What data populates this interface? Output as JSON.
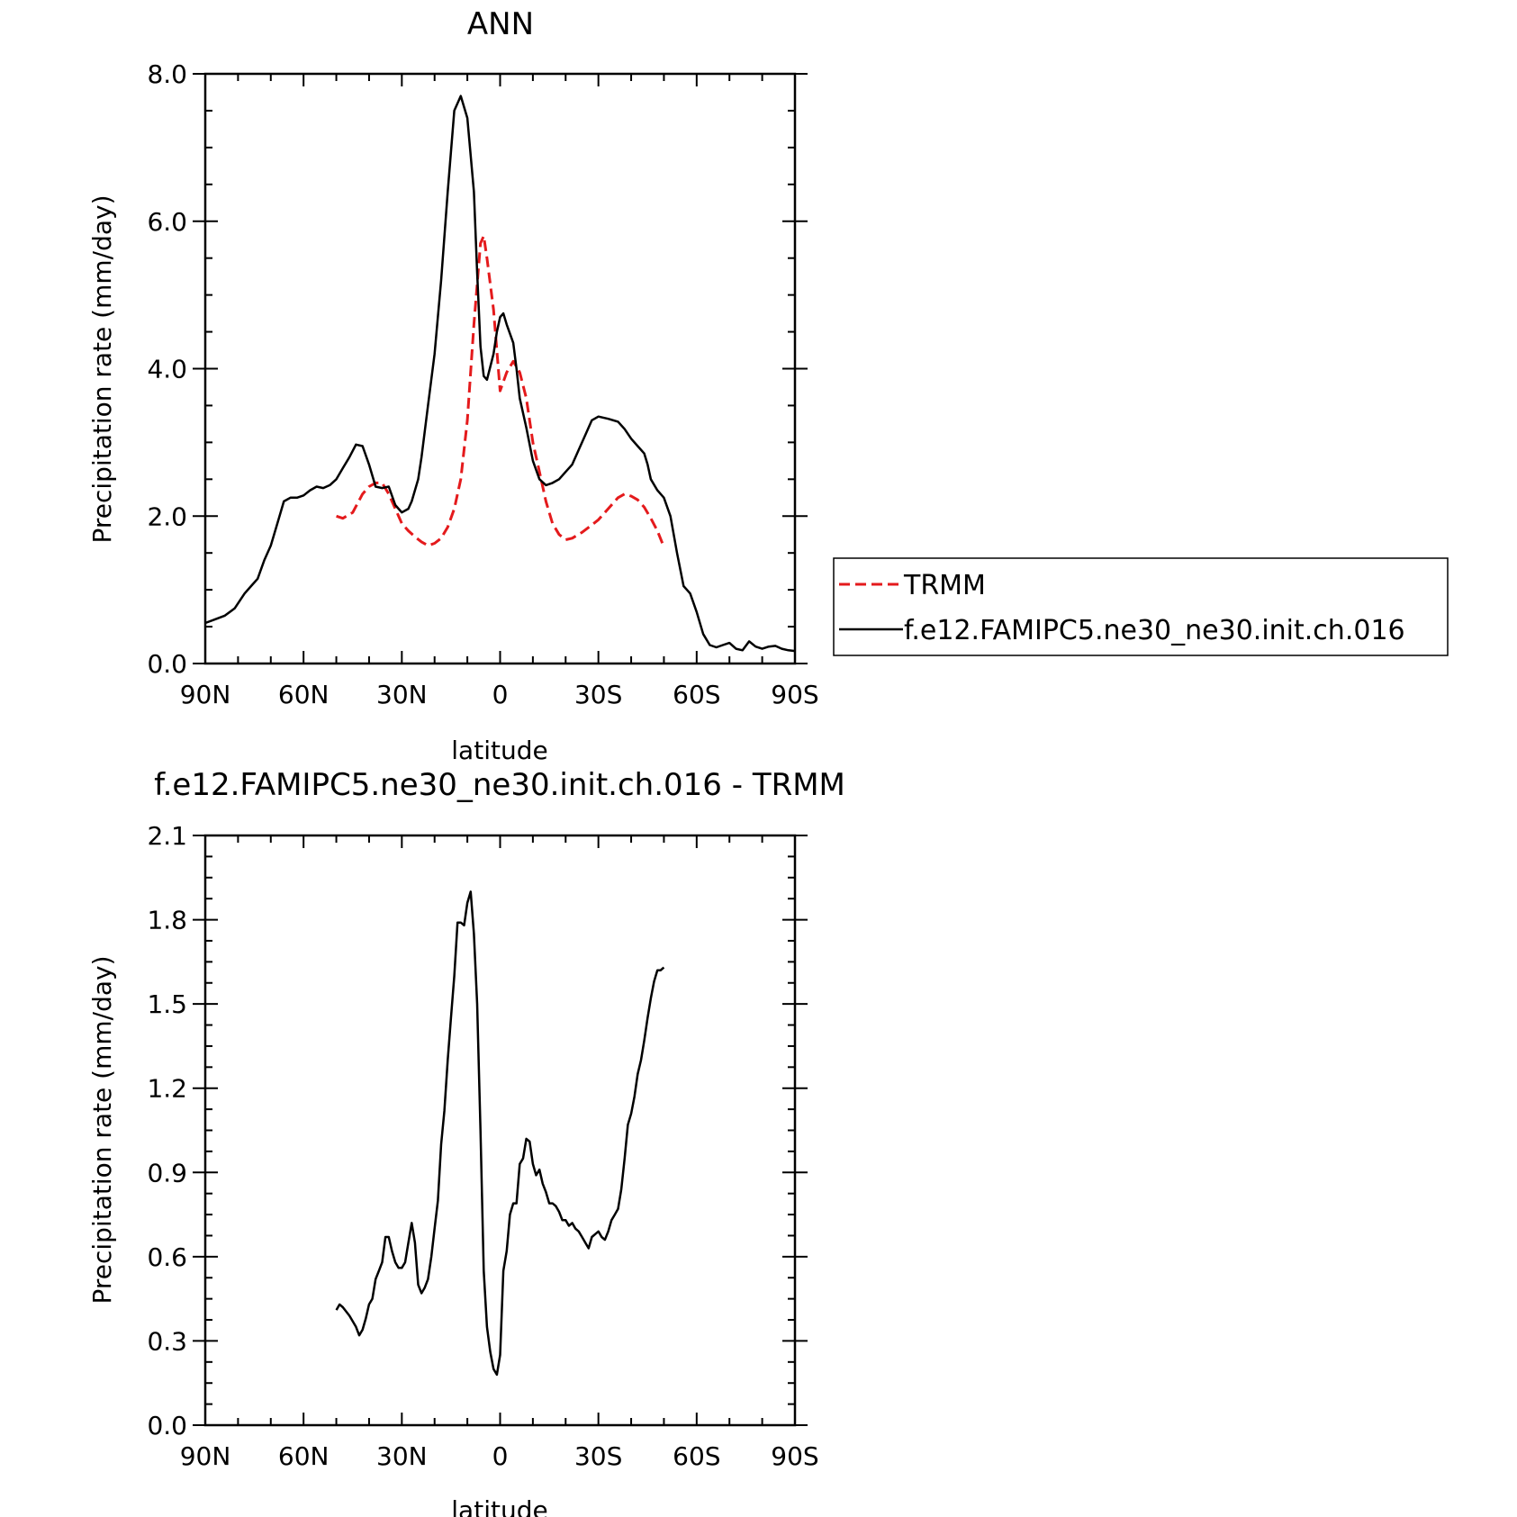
{
  "chart_data": [
    {
      "type": "line",
      "title": "ANN",
      "xlabel": "latitude",
      "ylabel": "Precipitation rate (mm/day)",
      "xlim": [
        90,
        -90
      ],
      "ylim": [
        0,
        8
      ],
      "xticks": [
        90,
        60,
        30,
        0,
        -30,
        -60,
        -90
      ],
      "xtick_labels": [
        "90N",
        "60N",
        "30N",
        "0",
        "30S",
        "60S",
        "90S"
      ],
      "yticks": [
        0,
        2,
        4,
        6,
        8
      ],
      "ytick_labels": [
        "0.0",
        "2.0",
        "4.0",
        "6.0",
        "8.0"
      ],
      "legend_position": "right",
      "series": [
        {
          "name": "TRMM",
          "color": "#e41a1c",
          "dash": true,
          "x": [
            50,
            48,
            45,
            42,
            40,
            38,
            36,
            34,
            32,
            30,
            28,
            26,
            24,
            22,
            20,
            18,
            16,
            14,
            12,
            10,
            8,
            6,
            5,
            4,
            2,
            0,
            -2,
            -4,
            -6,
            -8,
            -10,
            -12,
            -14,
            -16,
            -18,
            -20,
            -22,
            -25,
            -28,
            -30,
            -32,
            -34,
            -36,
            -38,
            -40,
            -42,
            -44,
            -46,
            -48,
            -50
          ],
          "y": [
            2.0,
            1.97,
            2.05,
            2.3,
            2.4,
            2.45,
            2.45,
            2.3,
            2.1,
            1.9,
            1.8,
            1.72,
            1.65,
            1.6,
            1.63,
            1.7,
            1.85,
            2.1,
            2.5,
            3.3,
            4.6,
            5.7,
            5.8,
            5.5,
            4.8,
            3.7,
            3.95,
            4.1,
            3.95,
            3.6,
            3.0,
            2.6,
            2.2,
            1.9,
            1.75,
            1.68,
            1.7,
            1.78,
            1.88,
            1.95,
            2.05,
            2.15,
            2.25,
            2.3,
            2.27,
            2.22,
            2.12,
            1.97,
            1.8,
            1.58
          ]
        },
        {
          "name": "f.e12.FAMIPC5.ne30_ne30.init.ch.016",
          "color": "#000000",
          "dash": false,
          "x": [
            90,
            87,
            84,
            81,
            78,
            76,
            74,
            72,
            70,
            68,
            66,
            64,
            62,
            60,
            58,
            56,
            54,
            52,
            50,
            48,
            46,
            44,
            42,
            40,
            38,
            36,
            34,
            32,
            30,
            28,
            27,
            26,
            25,
            24,
            22,
            20,
            18,
            16,
            14,
            12,
            10,
            8,
            7,
            6,
            5,
            4,
            2,
            1,
            0,
            -1,
            -2,
            -4,
            -5,
            -6,
            -8,
            -10,
            -12,
            -14,
            -16,
            -18,
            -20,
            -22,
            -24,
            -26,
            -28,
            -30,
            -33,
            -36,
            -38,
            -40,
            -42,
            -44,
            -45,
            -46,
            -48,
            -50,
            -52,
            -54,
            -56,
            -58,
            -60,
            -62,
            -64,
            -66,
            -68,
            -70,
            -72,
            -74,
            -76,
            -78,
            -80,
            -82,
            -84,
            -86,
            -88,
            -90
          ],
          "y": [
            0.55,
            0.6,
            0.65,
            0.75,
            0.95,
            1.05,
            1.15,
            1.4,
            1.6,
            1.9,
            2.2,
            2.25,
            2.25,
            2.28,
            2.35,
            2.4,
            2.38,
            2.42,
            2.5,
            2.65,
            2.8,
            2.97,
            2.95,
            2.7,
            2.4,
            2.38,
            2.4,
            2.15,
            2.05,
            2.1,
            2.2,
            2.35,
            2.5,
            2.8,
            3.5,
            4.2,
            5.2,
            6.4,
            7.5,
            7.7,
            7.4,
            6.4,
            5.3,
            4.3,
            3.9,
            3.85,
            4.2,
            4.5,
            4.7,
            4.75,
            4.6,
            4.35,
            4.0,
            3.6,
            3.2,
            2.75,
            2.5,
            2.42,
            2.45,
            2.5,
            2.6,
            2.7,
            2.9,
            3.1,
            3.3,
            3.35,
            3.32,
            3.28,
            3.18,
            3.05,
            2.95,
            2.85,
            2.7,
            2.5,
            2.35,
            2.25,
            2.0,
            1.5,
            1.05,
            0.95,
            0.7,
            0.4,
            0.25,
            0.22,
            0.25,
            0.28,
            0.2,
            0.18,
            0.3,
            0.23,
            0.2,
            0.23,
            0.24,
            0.2,
            0.18,
            0.17
          ]
        }
      ]
    },
    {
      "type": "line",
      "title": "f.e12.FAMIPC5.ne30_ne30.init.ch.016 - TRMM",
      "xlabel": "latitude",
      "ylabel": "Precipitation rate (mm/day)",
      "xlim": [
        90,
        -90
      ],
      "ylim": [
        0,
        2.1
      ],
      "xticks": [
        90,
        60,
        30,
        0,
        -30,
        -60,
        -90
      ],
      "xtick_labels": [
        "90N",
        "60N",
        "30N",
        "0",
        "30S",
        "60S",
        "90S"
      ],
      "yticks": [
        0,
        0.3,
        0.6,
        0.9,
        1.2,
        1.5,
        1.8,
        2.1
      ],
      "ytick_labels": [
        "0.0",
        "0.3",
        "0.6",
        "0.9",
        "1.2",
        "1.5",
        "1.8",
        "2.1"
      ],
      "series": [
        {
          "color": "#000000",
          "dash": false,
          "x": [
            50,
            49,
            48,
            46,
            45,
            44,
            43,
            42,
            41,
            40,
            39,
            38,
            37,
            36,
            35,
            34,
            33,
            32,
            31,
            30,
            29,
            28,
            27,
            26,
            25,
            24,
            23,
            22,
            21,
            20,
            19,
            18,
            17,
            16,
            15,
            14,
            13,
            12,
            11,
            10,
            9,
            8,
            7,
            6,
            5,
            4,
            3,
            2,
            1,
            0,
            -1,
            -2,
            -3,
            -4,
            -5,
            -6,
            -7,
            -8,
            -9,
            -10,
            -11,
            -12,
            -13,
            -14,
            -15,
            -16,
            -17,
            -18,
            -19,
            -20,
            -21,
            -22,
            -23,
            -24,
            -25,
            -26,
            -27,
            -28,
            -29,
            -30,
            -31,
            -32,
            -33,
            -34,
            -35,
            -36,
            -37,
            -38,
            -39,
            -40,
            -41,
            -42,
            -43,
            -44,
            -45,
            -46,
            -47,
            -48,
            -49,
            -50
          ],
          "y": [
            0.41,
            0.43,
            0.42,
            0.39,
            0.37,
            0.35,
            0.32,
            0.34,
            0.38,
            0.43,
            0.45,
            0.52,
            0.55,
            0.58,
            0.67,
            0.67,
            0.62,
            0.58,
            0.56,
            0.56,
            0.58,
            0.65,
            0.72,
            0.65,
            0.5,
            0.47,
            0.49,
            0.52,
            0.6,
            0.7,
            0.8,
            1.0,
            1.12,
            1.3,
            1.45,
            1.6,
            1.79,
            1.79,
            1.78,
            1.86,
            1.9,
            1.75,
            1.5,
            1.05,
            0.55,
            0.35,
            0.26,
            0.2,
            0.18,
            0.25,
            0.55,
            0.62,
            0.75,
            0.79,
            0.79,
            0.93,
            0.95,
            1.02,
            1.01,
            0.93,
            0.89,
            0.91,
            0.86,
            0.83,
            0.79,
            0.79,
            0.78,
            0.76,
            0.73,
            0.73,
            0.71,
            0.72,
            0.7,
            0.69,
            0.67,
            0.65,
            0.63,
            0.67,
            0.68,
            0.69,
            0.67,
            0.66,
            0.69,
            0.73,
            0.75,
            0.77,
            0.84,
            0.95,
            1.07,
            1.11,
            1.17,
            1.25,
            1.3,
            1.37,
            1.45,
            1.52,
            1.58,
            1.62,
            1.62,
            1.63
          ]
        }
      ]
    }
  ]
}
